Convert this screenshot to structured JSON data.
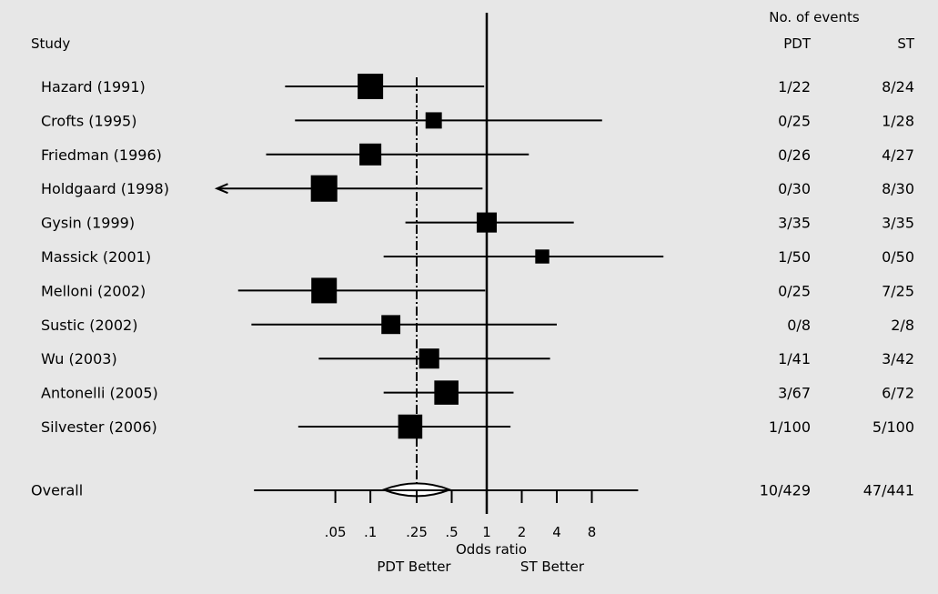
{
  "chart_data": {
    "type": "forest",
    "header": {
      "study_label": "Study",
      "events_label": "No. of events",
      "col1_label": "PDT",
      "col2_label": "ST"
    },
    "x_scale": "log",
    "xlim": [
      0.01,
      20
    ],
    "xticks": [
      {
        "value": 0.05,
        "label": ".05"
      },
      {
        "value": 0.1,
        "label": ".1"
      },
      {
        "value": 0.25,
        "label": ".25"
      },
      {
        "value": 0.5,
        "label": ".5"
      },
      {
        "value": 1,
        "label": "1"
      },
      {
        "value": 2,
        "label": "2"
      },
      {
        "value": 4,
        "label": "4"
      },
      {
        "value": 8,
        "label": "8"
      }
    ],
    "xlabel": "Odds ratio",
    "left_direction": "PDT Better",
    "right_direction": "ST Better",
    "reference_line": 1,
    "pooled_line": 0.25,
    "studies": [
      {
        "name": "Hazard (1991)",
        "or": 0.1,
        "lower": 0.0185,
        "upper": 0.95,
        "weight": 1.0,
        "pdt": "1/22",
        "st": "8/24",
        "arrow_left": false
      },
      {
        "name": "Crofts (1995)",
        "or": 0.35,
        "lower": 0.0225,
        "upper": 9.8,
        "weight": 0.44,
        "pdt": "0/25",
        "st": "1/28",
        "arrow_left": false
      },
      {
        "name": "Friedman (1996)",
        "or": 0.1,
        "lower": 0.0127,
        "upper": 2.3,
        "weight": 0.78,
        "pdt": "0/26",
        "st": "4/27",
        "arrow_left": false
      },
      {
        "name": "Holdgaard (1998)",
        "or": 0.04,
        "lower": 0.0048,
        "upper": 0.92,
        "weight": 1.06,
        "pdt": "0/30",
        "st": "8/30",
        "arrow_left": true
      },
      {
        "name": "Gysin (1999)",
        "or": 1.0,
        "lower": 0.2,
        "upper": 5.6,
        "weight": 0.67,
        "pdt": "3/35",
        "st": "3/35",
        "arrow_left": false
      },
      {
        "name": "Massick (2001)",
        "or": 3.0,
        "lower": 0.13,
        "upper": 33,
        "weight": 0.3,
        "pdt": "1/50",
        "st": "0/50",
        "arrow_left": false
      },
      {
        "name": "Melloni (2002)",
        "or": 0.04,
        "lower": 0.0073,
        "upper": 0.97,
        "weight": 1.0,
        "pdt": "0/25",
        "st": "7/25",
        "arrow_left": false
      },
      {
        "name": "Sustic (2002)",
        "or": 0.15,
        "lower": 0.0095,
        "upper": 4.0,
        "weight": 0.6,
        "pdt": "0/8",
        "st": "2/8",
        "arrow_left": false
      },
      {
        "name": "Wu (2003)",
        "or": 0.32,
        "lower": 0.036,
        "upper": 3.5,
        "weight": 0.67,
        "pdt": "1/41",
        "st": "3/42",
        "arrow_left": false
      },
      {
        "name": "Antonelli (2005)",
        "or": 0.45,
        "lower": 0.13,
        "upper": 1.7,
        "weight": 0.92,
        "pdt": "3/67",
        "st": "6/72",
        "arrow_left": false
      },
      {
        "name": "Silvester (2006)",
        "or": 0.22,
        "lower": 0.024,
        "upper": 1.6,
        "weight": 0.92,
        "pdt": "1/100",
        "st": "5/100",
        "arrow_left": false
      }
    ],
    "overall": {
      "name": "Overall",
      "or": 0.25,
      "lower": 0.13,
      "upper": 0.48,
      "pdt": "10/429",
      "st": "47/441"
    }
  }
}
